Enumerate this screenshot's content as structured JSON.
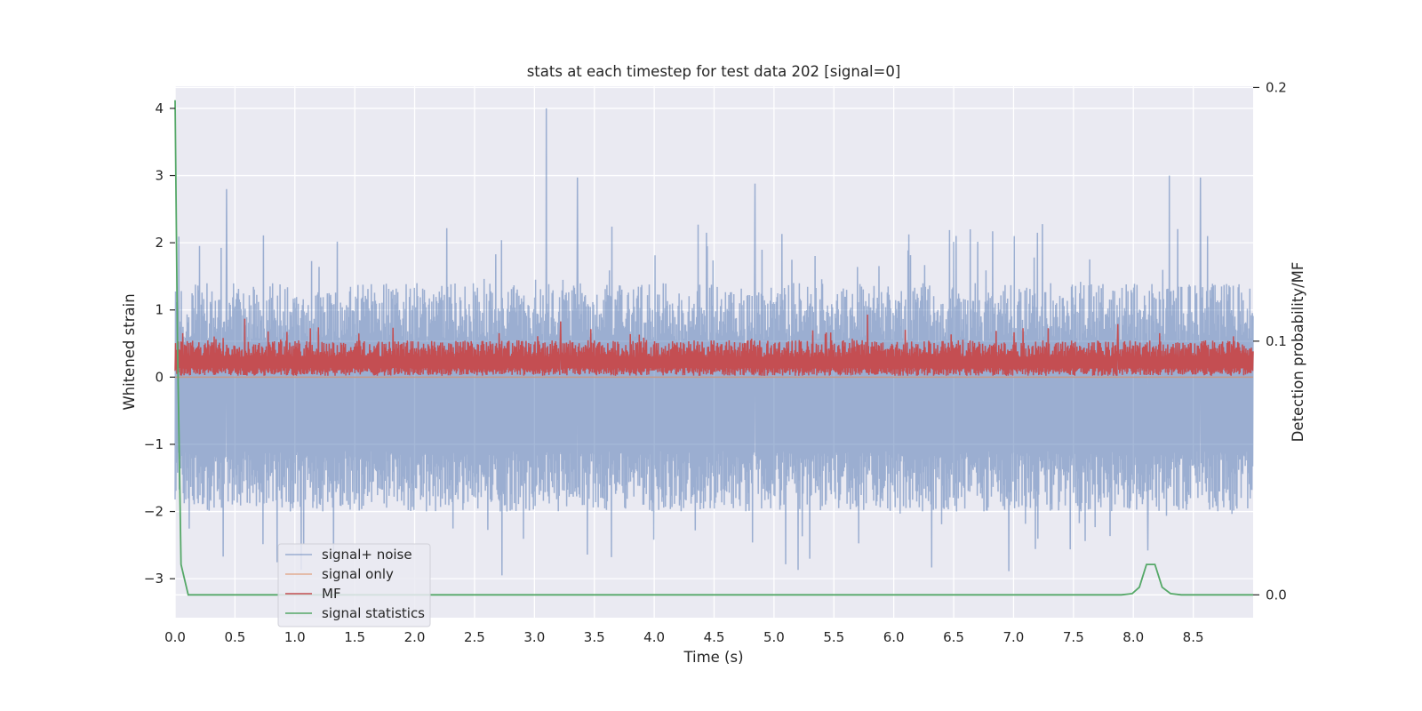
{
  "chart_data": {
    "type": "line",
    "title": "stats at each timestep for test data 202 [signal=0]",
    "xlabel": "Time (s)",
    "ylabel": "Whitened strain",
    "y2label": "Detection probability/MF",
    "xlim": [
      0.0,
      9.0
    ],
    "ylim": [
      -3.58,
      4.33
    ],
    "y2lim": [
      -0.009,
      0.2005
    ],
    "xticks": [
      "0.0",
      "0.5",
      "1.0",
      "1.5",
      "2.0",
      "2.5",
      "3.0",
      "3.5",
      "4.0",
      "4.5",
      "5.0",
      "5.5",
      "6.0",
      "6.5",
      "7.0",
      "7.5",
      "8.0",
      "8.5"
    ],
    "yticks": [
      "−3",
      "−2",
      "−1",
      "0",
      "1",
      "2",
      "3",
      "4"
    ],
    "y2ticks": [
      "0.0",
      "0.1",
      "0.2"
    ],
    "grid": true,
    "legend_position": "lower-left",
    "colors": {
      "signal_noise": "#4c72b0",
      "signal_only": "#dd8452",
      "mf": "#c44e52",
      "signal_statistics": "#55a868",
      "background": "#eaeaf2",
      "grid": "#ffffff"
    },
    "series": [
      {
        "name": "signal+ noise",
        "axis": "left",
        "color": "#4c72b0",
        "description_level": {
          "lower_band": -1.1,
          "upper_band": 1.3
        },
        "peaks": [
          {
            "x": 3.1,
            "y": 4.0
          },
          {
            "x": 8.3,
            "y": 3.0
          },
          {
            "x": 3.36,
            "y": 2.97
          },
          {
            "x": 8.56,
            "y": 2.97
          },
          {
            "x": 0.43,
            "y": 2.8
          },
          {
            "x": 4.84,
            "y": 2.88
          },
          {
            "x": 2.73,
            "y": -2.95
          },
          {
            "x": 5.2,
            "y": -2.87
          },
          {
            "x": 8.12,
            "y": -2.58
          }
        ]
      },
      {
        "name": "signal only",
        "axis": "left",
        "color": "#dd8452",
        "x": [
          0.0,
          9.0
        ],
        "y": [
          0.0,
          0.0
        ]
      },
      {
        "name": "MF",
        "axis": "left",
        "color": "#c44e52",
        "description_level": {
          "lower_band": 0.02,
          "upper_band": 0.5
        },
        "peaks": [
          {
            "x": 0.58,
            "y": 0.87
          },
          {
            "x": 5.78,
            "y": 0.93
          },
          {
            "x": 3.22,
            "y": 0.83
          },
          {
            "x": 7.87,
            "y": 0.79
          }
        ]
      },
      {
        "name": "signal statistics",
        "axis": "right",
        "color": "#55a868",
        "x": [
          0.0,
          0.02,
          0.05,
          0.11,
          0.3,
          1.0,
          2.0,
          3.0,
          4.0,
          5.0,
          6.0,
          7.0,
          7.9,
          7.99,
          8.05,
          8.11,
          8.18,
          8.24,
          8.31,
          8.4,
          8.6,
          9.0
        ],
        "y": [
          0.195,
          0.1,
          0.012,
          0.0,
          0.0,
          0.0,
          0.0,
          0.0,
          0.0,
          0.0,
          0.0,
          0.0,
          0.0,
          0.0005,
          0.003,
          0.012,
          0.012,
          0.003,
          0.0005,
          0.0,
          0.0,
          0.0
        ]
      }
    ]
  }
}
